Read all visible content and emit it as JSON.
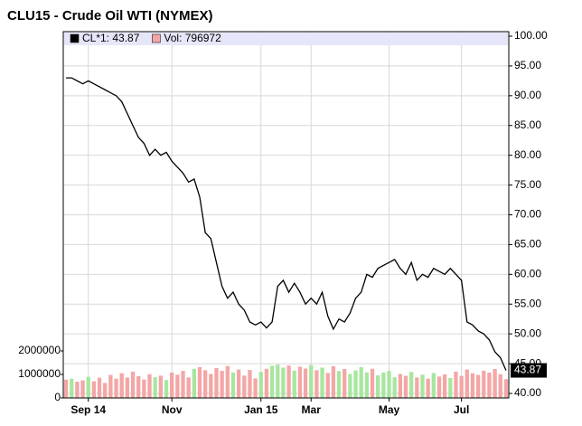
{
  "chart_data": {
    "type": "line",
    "title": "CLU15 - Crude Oil WTI (NYMEX)",
    "categories": [
      null,
      null,
      null,
      null,
      "Sep 14",
      null,
      null,
      null,
      null,
      null,
      null,
      null,
      null,
      null,
      null,
      null,
      null,
      null,
      null,
      "Nov",
      null,
      null,
      null,
      null,
      null,
      null,
      null,
      null,
      null,
      null,
      null,
      null,
      null,
      null,
      null,
      "Jan 15",
      null,
      null,
      null,
      null,
      null,
      null,
      null,
      null,
      "Mar",
      null,
      null,
      null,
      null,
      null,
      null,
      null,
      null,
      null,
      null,
      null,
      null,
      null,
      "May",
      null,
      null,
      null,
      null,
      null,
      null,
      null,
      null,
      null,
      null,
      null,
      null,
      "Jul",
      null,
      null,
      null,
      null,
      null,
      null,
      null,
      null
    ],
    "series": [
      {
        "name": "CL*1: 43.87",
        "color": "#000000",
        "values": [
          93,
          93,
          92.5,
          92,
          92.5,
          92,
          91.5,
          91,
          90.5,
          90,
          89,
          87,
          85,
          83,
          82,
          80,
          81,
          80,
          80.5,
          79,
          78,
          77,
          75.5,
          76,
          73,
          67,
          66,
          62,
          58,
          56,
          57,
          55,
          54,
          52,
          51.5,
          52,
          51,
          52,
          58,
          59,
          57,
          58.5,
          57,
          55,
          56,
          55,
          57,
          53,
          50.8,
          52.5,
          52,
          53.5,
          56,
          57,
          60,
          59.5,
          61,
          61.5,
          62,
          62.5,
          61,
          60,
          62,
          59,
          60,
          59.5,
          61,
          60.5,
          60,
          61,
          60,
          59,
          52,
          51.5,
          50.5,
          50,
          49,
          47,
          46,
          43.87
        ]
      },
      {
        "name": "Vol: 796972",
        "type": "bar",
        "axis": "y2",
        "color": "#f4a6a6",
        "up_color": "#a8e6a0",
        "values": [
          780000,
          820000,
          690000,
          750000,
          900000,
          710000,
          860000,
          640000,
          980000,
          820000,
          1050000,
          870000,
          1120000,
          930000,
          780000,
          1010000,
          880000,
          950000,
          760000,
          1080000,
          990000,
          1150000,
          870000,
          1240000,
          1310000,
          1180000,
          1020000,
          1270000,
          1150000,
          1360000,
          1080000,
          1210000,
          950000,
          1190000,
          830000,
          1110000,
          1240000,
          1370000,
          1420000,
          1290000,
          1380000,
          1160000,
          1330000,
          1250000,
          1400000,
          1180000,
          1290000,
          1060000,
          1350000,
          1140000,
          1230000,
          1020000,
          1170000,
          1310000,
          1090000,
          1240000,
          960000,
          1080000,
          1150000,
          880000,
          1020000,
          940000,
          1110000,
          870000,
          990000,
          820000,
          1060000,
          910000,
          1000000,
          850000,
          1120000,
          940000,
          1210000,
          1050000,
          980000,
          1160000,
          1080000,
          1230000,
          1010000,
          796972
        ]
      }
    ],
    "ylim": [
      39.24,
      100.76
    ],
    "yticks": [
      {
        "value": 40,
        "label": "40.00"
      },
      {
        "value": 45,
        "label": "45.00"
      },
      {
        "value": 50,
        "label": "50.00"
      },
      {
        "value": 55,
        "label": "55.00"
      },
      {
        "value": 60,
        "label": "60.00"
      },
      {
        "value": 65,
        "label": "65.00"
      },
      {
        "value": 70,
        "label": "70.00"
      },
      {
        "value": 75,
        "label": "75.00"
      },
      {
        "value": 80,
        "label": "80.00"
      },
      {
        "value": 85,
        "label": "85.00"
      },
      {
        "value": 90,
        "label": "90.00"
      },
      {
        "value": 95,
        "label": "95.00"
      },
      {
        "value": 100,
        "label": "100.00"
      }
    ],
    "y2lim": [
      0,
      15580000
    ],
    "y2ticks": [
      0,
      1000000,
      2000000
    ],
    "grid": true,
    "legend": "top-left"
  }
}
